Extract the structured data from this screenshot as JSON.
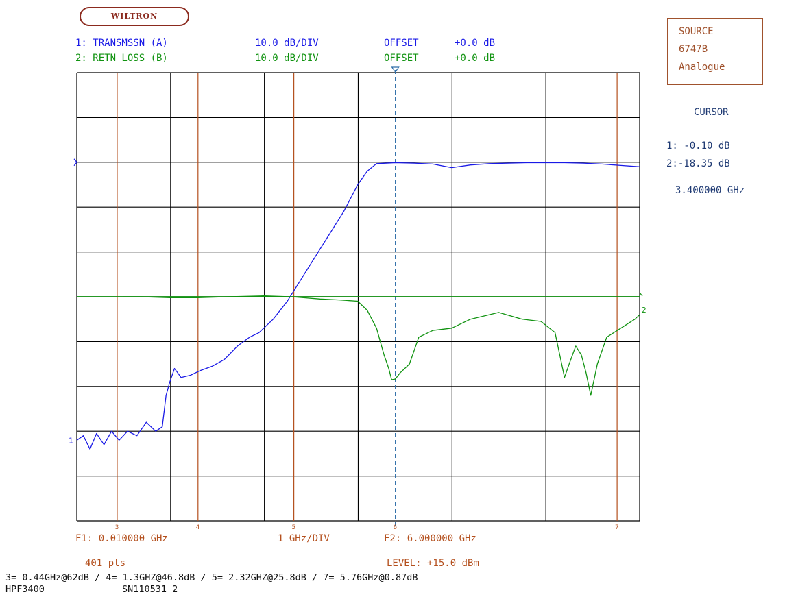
{
  "header": {
    "logo_text": "WILTRON",
    "trace1": {
      "label": "1: TRANSMSSN (A)",
      "scale": "10.0 dB/DIV",
      "offset_label": "OFFSET",
      "offset_value": "+0.0 dB"
    },
    "trace2": {
      "label": "2: RETN LOSS (B)",
      "scale": "10.0 dB/DIV",
      "offset_label": "OFFSET",
      "offset_value": "+0.0 dB"
    }
  },
  "source_box": {
    "line1": "SOURCE",
    "line2": "6747B",
    "line3": "Analogue"
  },
  "cursor_panel": {
    "title": "CURSOR",
    "trace1_value": "1: -0.10 dB",
    "trace2_value": "2:-18.35 dB",
    "frequency": "3.400000 GHz"
  },
  "bottom": {
    "f1": "F1: 0.010000 GHz",
    "div": "1 GHz/DIV",
    "f2": "F2: 6.000000 GHz",
    "points": "401 pts",
    "level": "LEVEL: +15.0 dBm",
    "markers_line": "3= 0.44GHz@62dB / 4= 1.3GHZ@46.8dB / 5= 2.32GHZ@25.8dB / 7= 5.76GHz@0.87dB",
    "model": "HPF3400",
    "serial": "SN110531 2"
  },
  "colors": {
    "trace1": "#1a1ae6",
    "trace2": "#119311",
    "grid": "#000000",
    "marker": "#b4501e",
    "cursor": "#2f6ea8"
  },
  "chart_data": {
    "type": "line",
    "title": "",
    "xlabel": "1 GHz/DIV",
    "ylabel": "",
    "xlim": [
      0.01,
      6.0
    ],
    "grid": true,
    "grid_divisions": {
      "x": 6,
      "y": 10
    },
    "y_scale_db_per_div": 10,
    "reference_divisions_from_top": {
      "trace1": 2,
      "trace2": 5
    },
    "cursor_x": 3.4,
    "markers": [
      {
        "id": "3",
        "x": 0.44
      },
      {
        "id": "4",
        "x": 1.3
      },
      {
        "id": "5",
        "x": 2.32
      },
      {
        "id": "7",
        "x": 5.76
      }
    ],
    "series": [
      {
        "name": "1: TRANSMSSN (A)",
        "x": [
          0.01,
          0.08,
          0.15,
          0.22,
          0.3,
          0.38,
          0.46,
          0.55,
          0.65,
          0.75,
          0.85,
          0.92,
          0.96,
          1.0,
          1.05,
          1.12,
          1.22,
          1.32,
          1.45,
          1.58,
          1.72,
          1.85,
          1.95,
          2.1,
          2.25,
          2.4,
          2.55,
          2.7,
          2.85,
          3.0,
          3.1,
          3.2,
          3.4,
          3.6,
          3.8,
          4.0,
          4.2,
          4.4,
          4.6,
          4.8,
          5.0,
          5.2,
          5.4,
          5.6,
          5.8,
          6.0
        ],
        "y": [
          -62,
          -61,
          -64,
          -60.5,
          -63,
          -60,
          -62,
          -60,
          -61,
          -58,
          -60,
          -59,
          -52,
          -49,
          -46,
          -48,
          -47.5,
          -46.5,
          -45.5,
          -44,
          -41,
          -39,
          -38,
          -35,
          -31,
          -26,
          -21,
          -16,
          -11,
          -5,
          -2,
          -0.3,
          -0.1,
          -0.2,
          -0.4,
          -1.2,
          -0.6,
          -0.3,
          -0.2,
          -0.1,
          -0.1,
          -0.1,
          -0.2,
          -0.4,
          -0.7,
          -1
        ]
      },
      {
        "name": "2: RETN LOSS (B)",
        "x": [
          0.5,
          0.7,
          1.0,
          1.3,
          1.6,
          2.0,
          2.3,
          2.6,
          2.8,
          3.0,
          3.1,
          3.2,
          3.28,
          3.33,
          3.36,
          3.4,
          3.45,
          3.55,
          3.65,
          3.8,
          4.0,
          4.2,
          4.5,
          4.75,
          4.95,
          5.1,
          5.15,
          5.2,
          5.25,
          5.32,
          5.38,
          5.43,
          5.48,
          5.55,
          5.65,
          5.8,
          5.95,
          6.0
        ],
        "y": [
          0,
          0,
          -0.2,
          -0.2,
          0,
          0.2,
          0,
          -0.5,
          -0.7,
          -1,
          -3,
          -7,
          -13,
          -16,
          -18.5,
          -18.35,
          -17,
          -15,
          -9,
          -7.5,
          -7,
          -5,
          -3.5,
          -5,
          -5.5,
          -8,
          -13,
          -18,
          -15,
          -11,
          -13,
          -17,
          -22,
          -15,
          -9,
          -7,
          -5,
          -4
        ]
      }
    ]
  }
}
